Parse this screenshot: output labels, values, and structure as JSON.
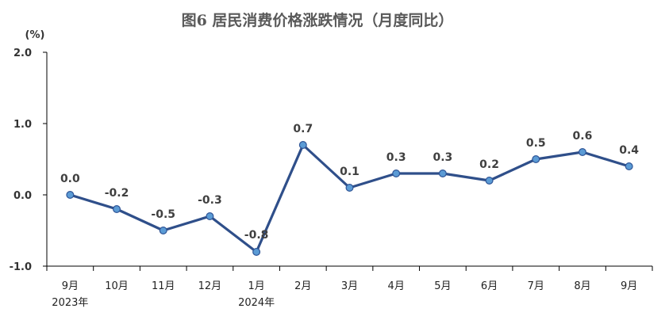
{
  "chart_data": {
    "type": "line",
    "title": "图6  居民消费价格涨跌情况（月度同比）",
    "unit_label": "(%)",
    "categories": [
      "9月",
      "10月",
      "11月",
      "12月",
      "1月",
      "2月",
      "3月",
      "4月",
      "5月",
      "6月",
      "7月",
      "8月",
      "9月"
    ],
    "year_labels": [
      {
        "index": 0,
        "label": "2023年"
      },
      {
        "index": 4,
        "label": "2024年"
      }
    ],
    "series": [
      {
        "values": [
          0.0,
          -0.2,
          -0.5,
          -0.3,
          -0.8,
          0.7,
          0.1,
          0.3,
          0.3,
          0.2,
          0.5,
          0.6,
          0.4
        ],
        "labels": [
          "0.0",
          "-0.2",
          "-0.5",
          "-0.3",
          "-0.8",
          "0.7",
          "0.1",
          "0.3",
          "0.3",
          "0.2",
          "0.5",
          "0.6",
          "0.4"
        ]
      }
    ],
    "ylim": [
      -1.0,
      2.0
    ],
    "yticks": [
      "2.0",
      "1.0",
      "0.0",
      "-1.0"
    ],
    "grid": false,
    "legend": "none",
    "colors": {
      "line": "#2f4f8a",
      "marker": "#5b9bd5"
    }
  }
}
